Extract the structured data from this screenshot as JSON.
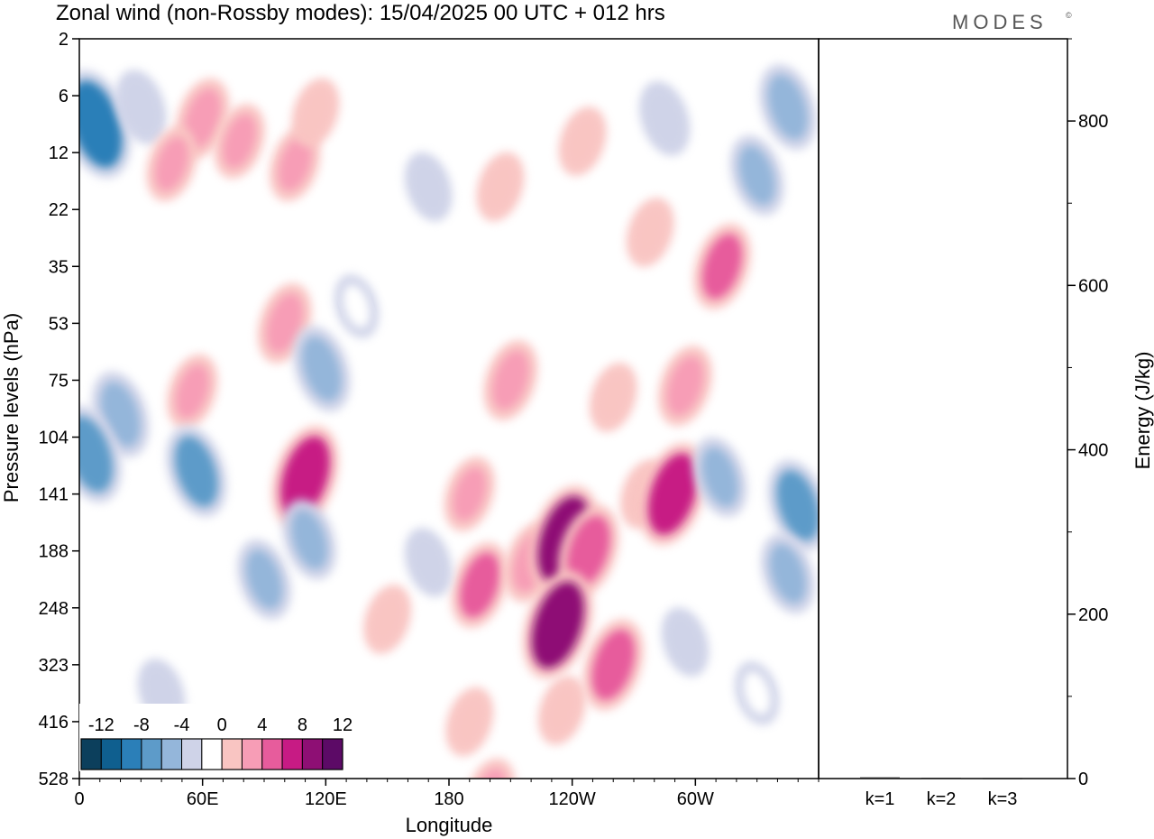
{
  "title": "Zonal wind (non-Rossby modes):  15/04/2025  00 UTC  + 012 hrs",
  "logo": "MODES",
  "logo_mark": "©",
  "chart_data": [
    {
      "type": "heatmap",
      "xlabel": "Longitude",
      "ylabel": "Pressure levels (hPa)",
      "x_ticks": [
        "0",
        "60E",
        "120E",
        "180",
        "120W",
        "60W"
      ],
      "y_ticks": [
        "2",
        "6",
        "12",
        "22",
        "35",
        "53",
        "75",
        "104",
        "141",
        "188",
        "248",
        "323",
        "416",
        "528"
      ],
      "colorbar": {
        "labels": [
          "-12",
          "-8",
          "-4",
          "0",
          "4",
          "8",
          "12"
        ],
        "levels": [
          -14,
          -12,
          -10,
          -8,
          -6,
          -4,
          -2,
          2,
          4,
          6,
          8,
          10,
          12,
          14
        ],
        "colors": [
          "#0c3f5c",
          "#0f5f8f",
          "#2b7fb8",
          "#5d9bc9",
          "#94b6da",
          "#cfd3e8",
          "#ffffff",
          "#f9c5c2",
          "#f79db6",
          "#e75c9c",
          "#c71b84",
          "#8e0f74",
          "#5c0a66"
        ]
      },
      "features": [
        {
          "lon": 8,
          "lev": 1.5,
          "value": -10
        },
        {
          "lon": 30,
          "lev": 1.2,
          "value": -4
        },
        {
          "lon": 60,
          "lev": 1.4,
          "value": 5
        },
        {
          "lon": 45,
          "lev": 2.2,
          "value": 4
        },
        {
          "lon": 78,
          "lev": 1.8,
          "value": 4
        },
        {
          "lon": 105,
          "lev": 2.2,
          "value": 4
        },
        {
          "lon": 115,
          "lev": 1.3,
          "value": 3
        },
        {
          "lon": 170,
          "lev": 2.6,
          "value": -3
        },
        {
          "lon": 205,
          "lev": 2.6,
          "value": 3
        },
        {
          "lon": 245,
          "lev": 1.8,
          "value": 3
        },
        {
          "lon": 285,
          "lev": 1.4,
          "value": -4
        },
        {
          "lon": 345,
          "lev": 1.2,
          "value": -6
        },
        {
          "lon": 330,
          "lev": 2.4,
          "value": -5
        },
        {
          "lon": 278,
          "lev": 3.4,
          "value": 3
        },
        {
          "lon": 313,
          "lev": 4.0,
          "value": 6
        },
        {
          "lon": 100,
          "lev": 5.0,
          "value": 5
        },
        {
          "lon": 118,
          "lev": 5.8,
          "value": -6
        },
        {
          "lon": 135,
          "lev": 4.7,
          "value": -2
        },
        {
          "lon": 295,
          "lev": 6.1,
          "value": 5
        },
        {
          "lon": 20,
          "lev": 6.6,
          "value": -6
        },
        {
          "lon": 55,
          "lev": 6.2,
          "value": 4
        },
        {
          "lon": 210,
          "lev": 6.0,
          "value": 5
        },
        {
          "lon": 260,
          "lev": 6.3,
          "value": 3
        },
        {
          "lon": 5,
          "lev": 7.3,
          "value": -8
        },
        {
          "lon": 57,
          "lev": 7.6,
          "value": -7
        },
        {
          "lon": 110,
          "lev": 7.7,
          "value": 9
        },
        {
          "lon": 190,
          "lev": 8.0,
          "value": 4
        },
        {
          "lon": 195,
          "lev": 9.6,
          "value": 6
        },
        {
          "lon": 220,
          "lev": 9.2,
          "value": 5
        },
        {
          "lon": 236,
          "lev": 8.8,
          "value": 10
        },
        {
          "lon": 248,
          "lev": 9.0,
          "value": 7
        },
        {
          "lon": 275,
          "lev": 8.0,
          "value": 3
        },
        {
          "lon": 289,
          "lev": 8.0,
          "value": 9
        },
        {
          "lon": 312,
          "lev": 7.7,
          "value": -5
        },
        {
          "lon": 350,
          "lev": 8.2,
          "value": -7
        },
        {
          "lon": 345,
          "lev": 9.4,
          "value": -5
        },
        {
          "lon": 90,
          "lev": 9.5,
          "value": -5
        },
        {
          "lon": 112,
          "lev": 8.8,
          "value": -5
        },
        {
          "lon": 150,
          "lev": 10.2,
          "value": 3
        },
        {
          "lon": 170,
          "lev": 9.2,
          "value": -3
        },
        {
          "lon": 233,
          "lev": 10.3,
          "value": 10
        },
        {
          "lon": 295,
          "lev": 10.6,
          "value": -3
        },
        {
          "lon": 260,
          "lev": 11.0,
          "value": 7
        },
        {
          "lon": 190,
          "lev": 12.0,
          "value": 3
        },
        {
          "lon": 200,
          "lev": 13.3,
          "value": 4
        },
        {
          "lon": 40,
          "lev": 11.5,
          "value": -3
        },
        {
          "lon": 330,
          "lev": 11.5,
          "value": -2
        },
        {
          "lon": 235,
          "lev": 11.8,
          "value": 3
        }
      ]
    },
    {
      "type": "bar",
      "categories": [
        "k=1",
        "k=2",
        "k=3"
      ],
      "values": [
        1.5,
        1.0,
        0.8
      ],
      "ylabel": "Energy (J/kg)",
      "ylim": [
        0,
        900
      ],
      "y_ticks": [
        0,
        200,
        400,
        600,
        800
      ]
    }
  ]
}
